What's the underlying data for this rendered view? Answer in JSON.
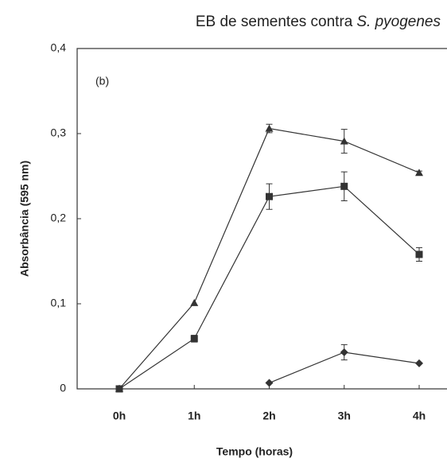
{
  "chart_data": {
    "type": "line",
    "title": [
      "EB de sementes contra",
      "S. pyogenes"
    ],
    "annotation": "(b)",
    "x_label": "Tempo (horas)",
    "y_label": "Absorbância (595 nm)",
    "categories": [
      "0h",
      "1h",
      "2h",
      "3h",
      "4h"
    ],
    "ylim": [
      0,
      0.4
    ],
    "yticks": [
      0,
      {
        "value": 0.1,
        "label": "0,1"
      },
      {
        "value": 0.2,
        "label": "0,2"
      },
      {
        "value": 0.3,
        "label": "0,3"
      },
      {
        "value": 0.4,
        "label": "0,4"
      }
    ],
    "series": [
      {
        "marker": "triangle",
        "color": "#333333",
        "values": [
          0,
          0.101,
          0.306,
          0.291,
          0.254
        ],
        "errors": [
          null,
          null,
          0.005,
          0.014,
          0.002
        ]
      },
      {
        "marker": "square",
        "color": "#333333",
        "values": [
          0,
          0.059,
          0.226,
          0.238,
          0.158
        ],
        "errors": [
          null,
          0.004,
          0.015,
          0.017,
          0.008
        ]
      },
      {
        "marker": "diamond",
        "color": "#333333",
        "values": [
          null,
          null,
          0.007,
          0.043,
          0.03
        ],
        "errors": [
          null,
          null,
          null,
          0.009,
          null
        ]
      }
    ]
  }
}
